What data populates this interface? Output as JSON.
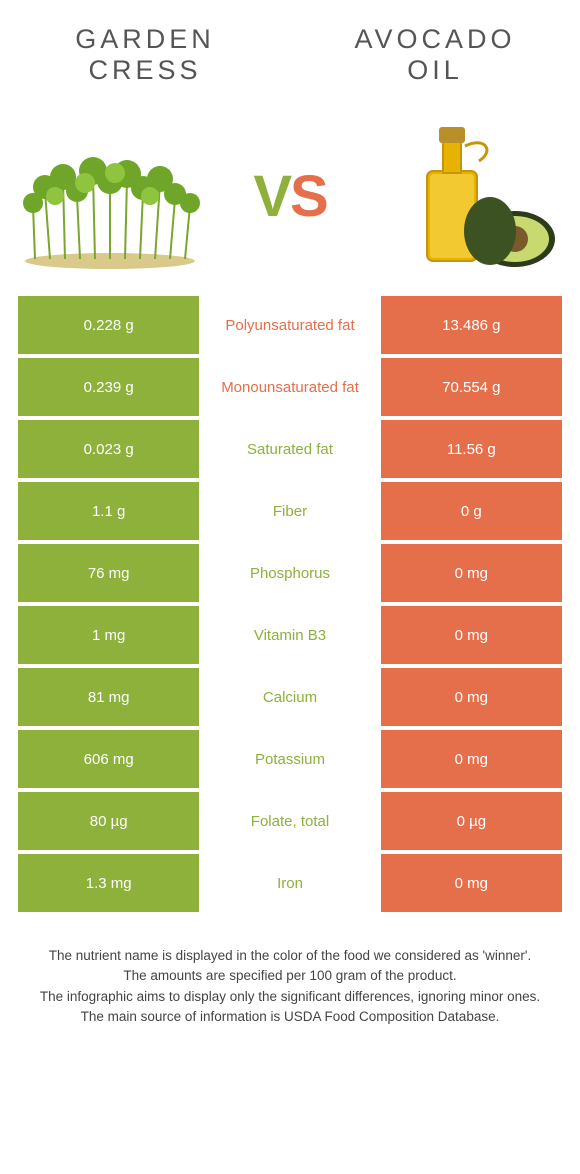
{
  "header": {
    "left_line1": "GARDEN",
    "left_line2": "CRESS",
    "right_line1": "AVOCADO",
    "right_line2": "OIL"
  },
  "vs": {
    "v": "V",
    "s": "S"
  },
  "colors": {
    "green": "#8db13b",
    "orange": "#e56e4b",
    "mid_bg": "#ffffff"
  },
  "rows": [
    {
      "left": "0.228 g",
      "mid": "Polyunsaturated fat",
      "right": "13.486 g",
      "winner": "orange"
    },
    {
      "left": "0.239 g",
      "mid": "Monounsaturated fat",
      "right": "70.554 g",
      "winner": "orange"
    },
    {
      "left": "0.023 g",
      "mid": "Saturated fat",
      "right": "11.56 g",
      "winner": "green"
    },
    {
      "left": "1.1 g",
      "mid": "Fiber",
      "right": "0 g",
      "winner": "green"
    },
    {
      "left": "76 mg",
      "mid": "Phosphorus",
      "right": "0 mg",
      "winner": "green"
    },
    {
      "left": "1 mg",
      "mid": "Vitamin B3",
      "right": "0 mg",
      "winner": "green"
    },
    {
      "left": "81 mg",
      "mid": "Calcium",
      "right": "0 mg",
      "winner": "green"
    },
    {
      "left": "606 mg",
      "mid": "Potassium",
      "right": "0 mg",
      "winner": "green"
    },
    {
      "left": "80 µg",
      "mid": "Folate, total",
      "right": "0 µg",
      "winner": "green"
    },
    {
      "left": "1.3 mg",
      "mid": "Iron",
      "right": "0 mg",
      "winner": "green"
    }
  ],
  "footnotes": [
    "The nutrient name is displayed in the color of the food we considered as 'winner'.",
    "The amounts are specified per 100 gram of the product.",
    "The infographic aims to display only the significant differences, ignoring minor ones.",
    "The main source of information is USDA Food Composition Database."
  ]
}
